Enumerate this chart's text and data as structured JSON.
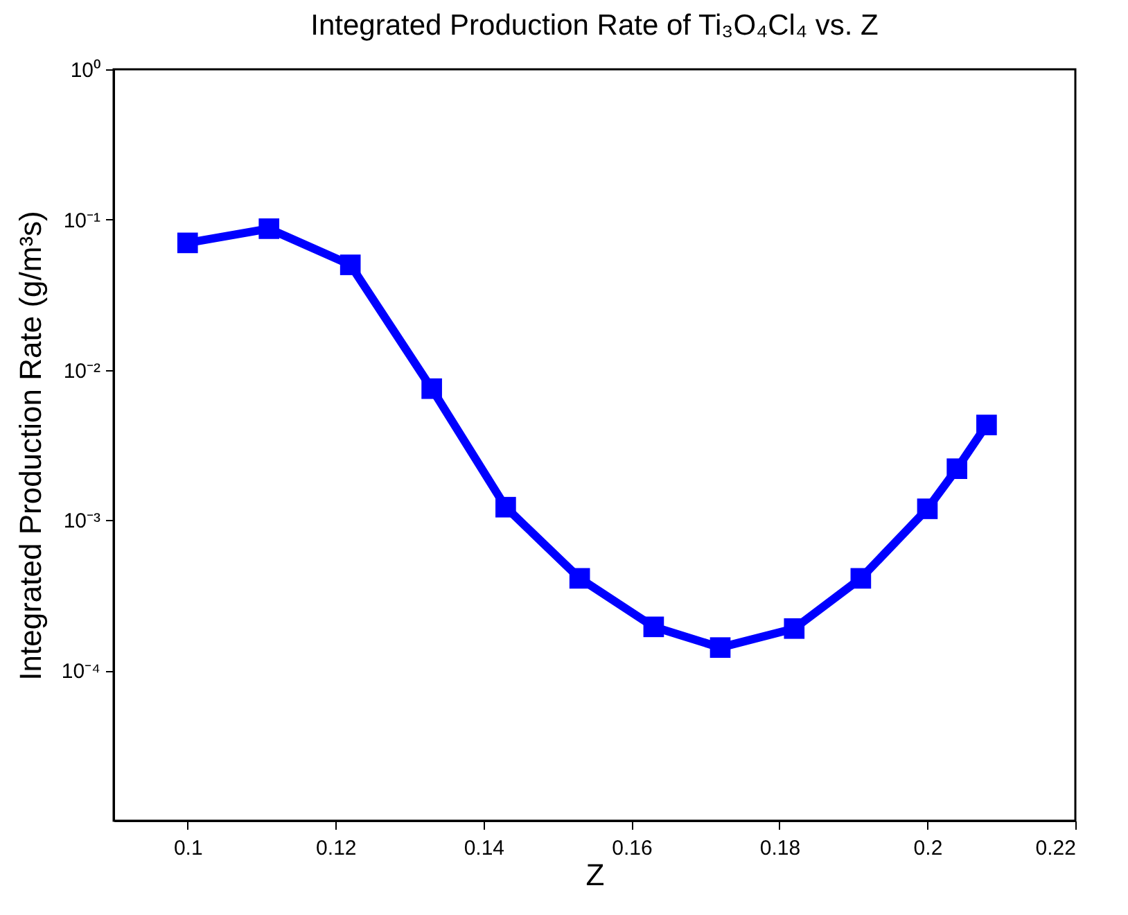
{
  "chart_data": {
    "type": "line",
    "title": "Integrated Production Rate of Ti₃O₄Cl₄ vs. Z",
    "xlabel": "Z",
    "ylabel": "Integrated Production Rate (g/m³s)",
    "x": [
      0.1,
      0.111,
      0.122,
      0.133,
      0.143,
      0.153,
      0.163,
      0.172,
      0.182,
      0.191,
      0.2,
      0.204,
      0.208
    ],
    "series": [
      {
        "color": "#0000ff",
        "values": [
          0.07,
          0.087,
          0.05,
          0.0075,
          0.00122,
          0.00041,
          0.000195,
          0.000142,
          0.00019,
          0.00041,
          0.00119,
          0.0022,
          0.0043
        ]
      }
    ],
    "log": "y",
    "xlim": [
      0.09,
      0.22
    ],
    "xticks": [
      0.1,
      0.12,
      0.14,
      0.16,
      0.18,
      0.2,
      0.22
    ],
    "ylim": [
      1e-05,
      1
    ],
    "yticks": [
      {
        "value": 1,
        "label": "10⁰"
      },
      {
        "value": 0.1,
        "label": "10⁻¹"
      },
      {
        "value": 0.01,
        "label": "10⁻²"
      },
      {
        "value": 0.001,
        "label": "10⁻³"
      },
      {
        "value": 0.0001,
        "label": "10⁻⁴"
      }
    ],
    "grid": false,
    "marker": "square",
    "line_style": "solid"
  }
}
